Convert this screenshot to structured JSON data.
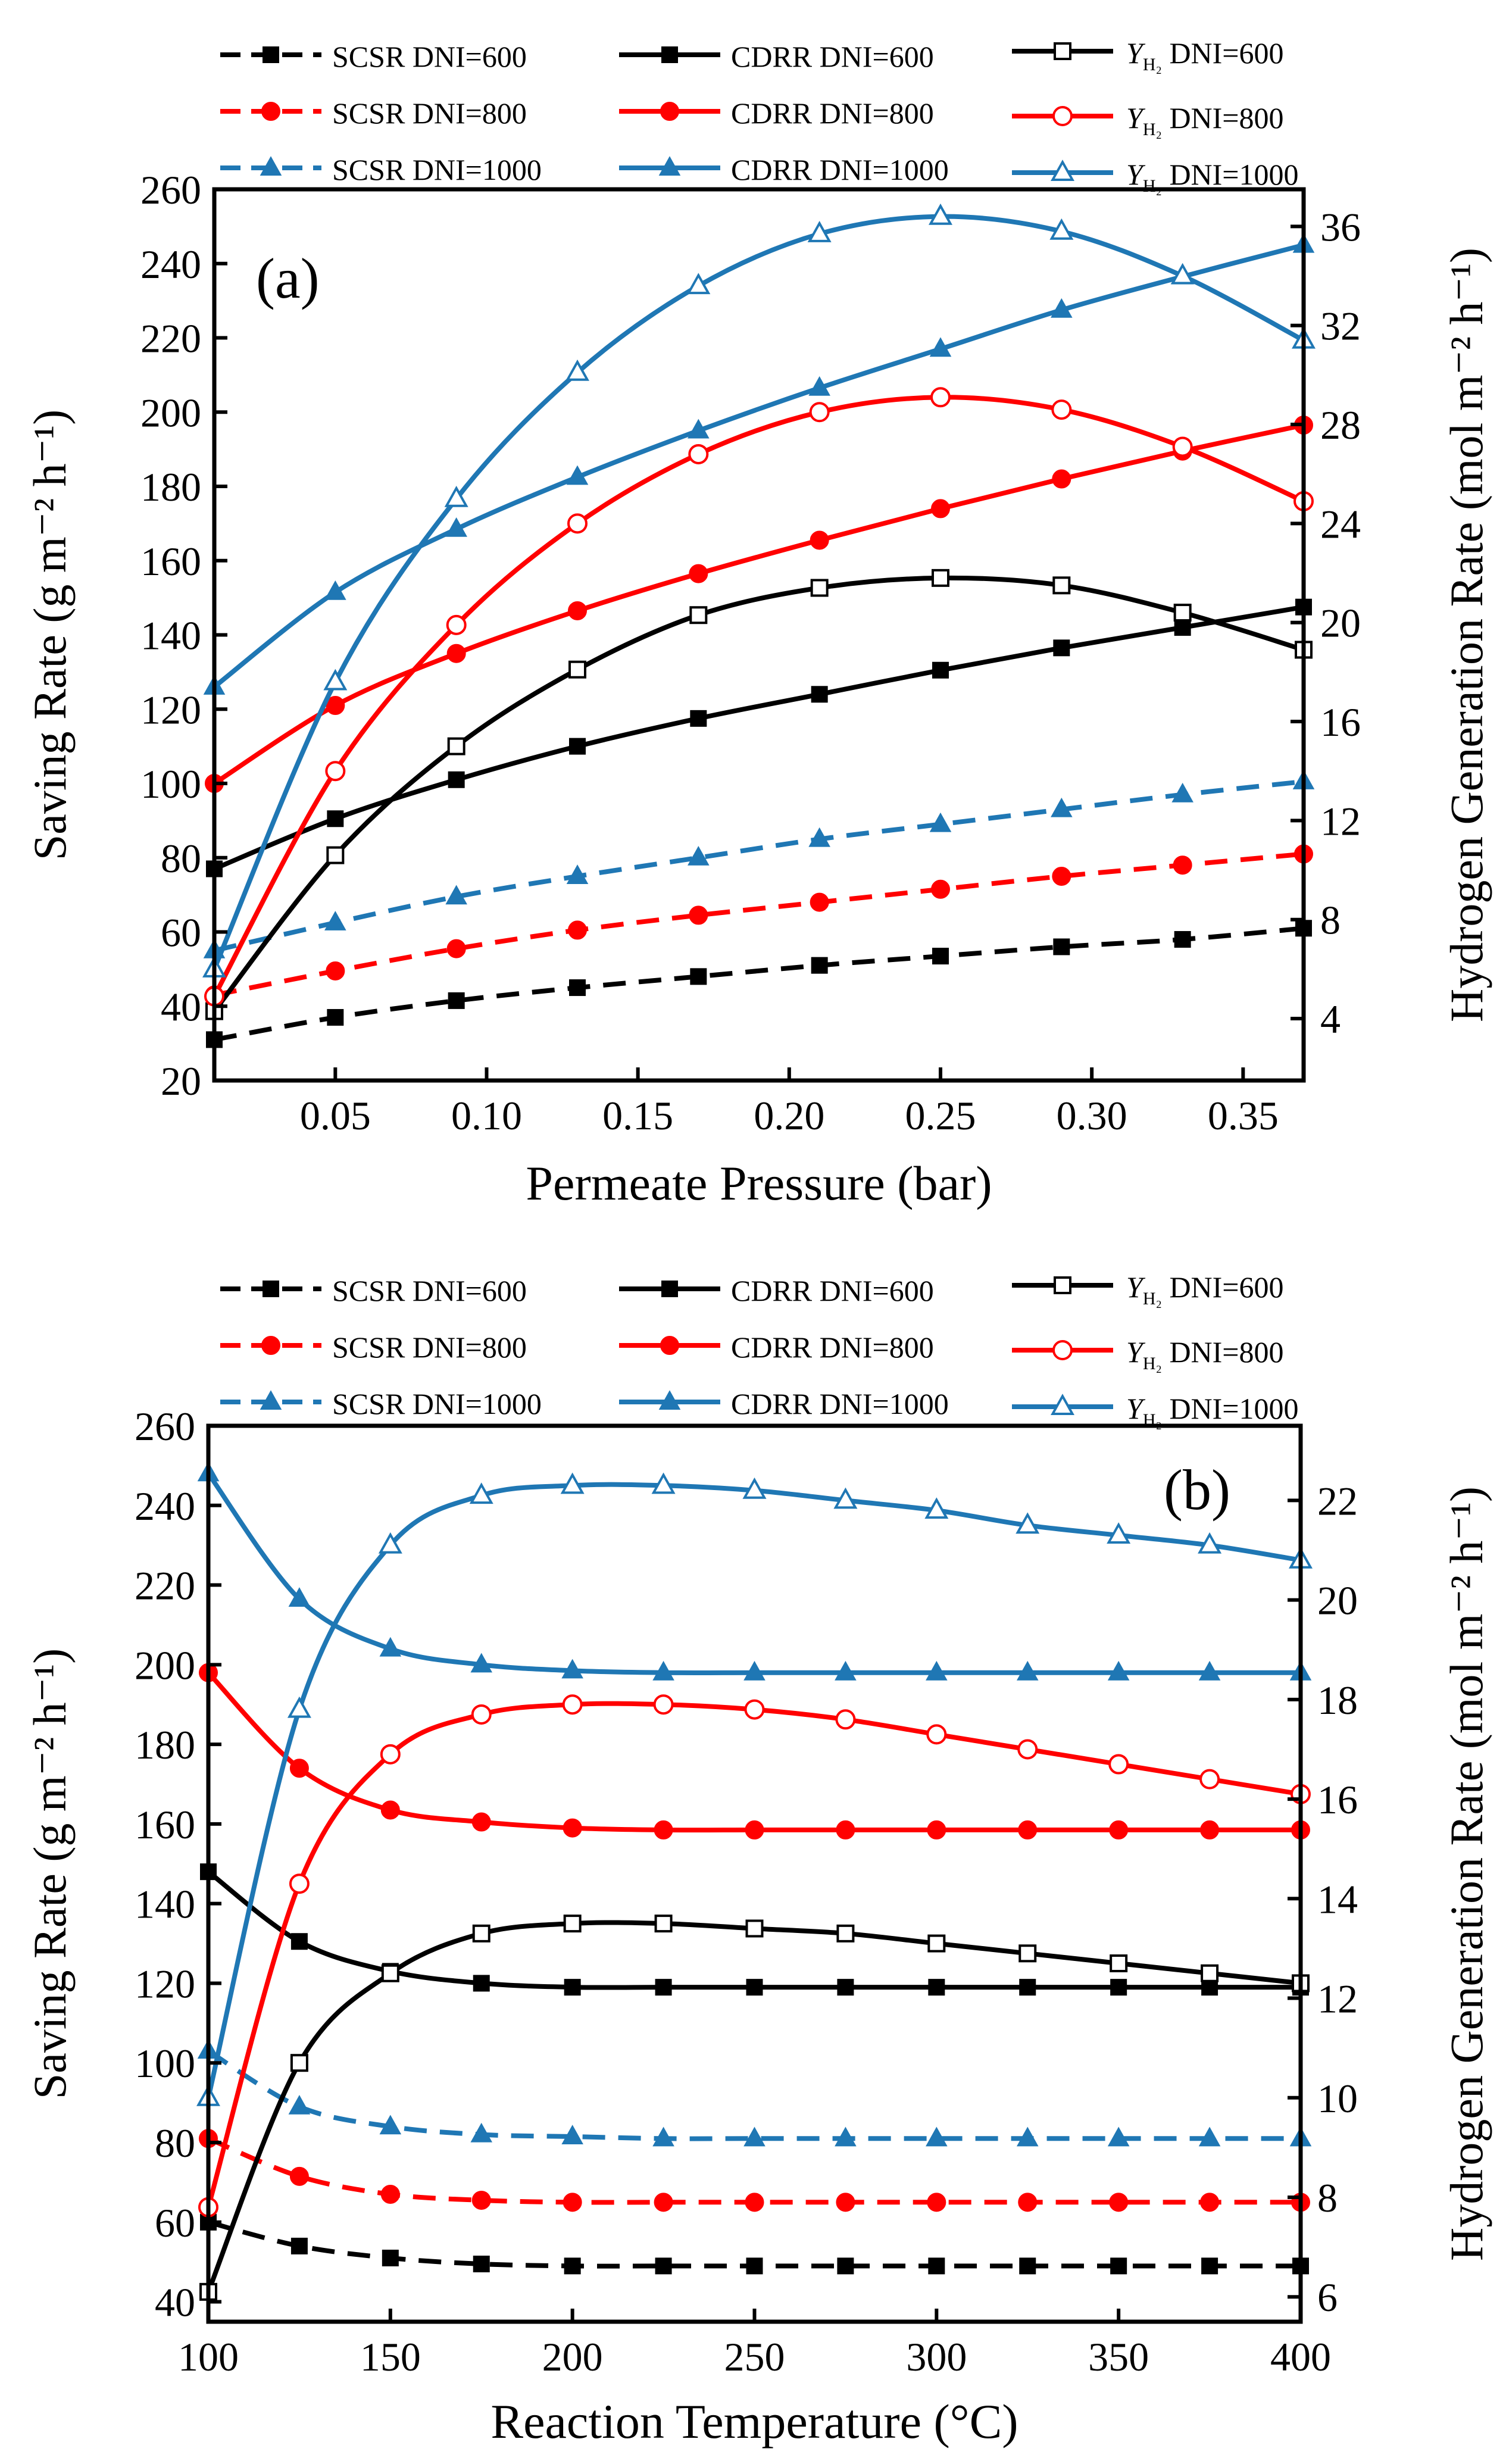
{
  "colors": {
    "black": "#000000",
    "red": "#ff0000",
    "blue": "#1f77b4"
  },
  "chart_data": [
    {
      "type": "line",
      "panel_label": "(a)",
      "xlabel": "Permeate Pressure (bar)",
      "ylabel_left": "Saving Rate (g m⁻² h⁻¹)",
      "ylabel_right": "Hydrogen Generation Rate (mol m⁻² h⁻¹)",
      "xlim": [
        0.01,
        0.37
      ],
      "ylim_left": [
        20,
        260
      ],
      "ylim_right": [
        1.5,
        37.5
      ],
      "x_ticks": [
        0.05,
        0.1,
        0.15,
        0.2,
        0.25,
        0.3,
        0.35
      ],
      "x_tick_labels": [
        "0.05",
        "0.10",
        "0.15",
        "0.20",
        "0.25",
        "0.30",
        "0.35"
      ],
      "y_left_ticks": [
        20,
        40,
        60,
        80,
        100,
        120,
        140,
        160,
        180,
        200,
        220,
        240,
        260
      ],
      "y_left_tick_labels": [
        "20",
        "40",
        "60",
        "80",
        "100",
        "120",
        "140",
        "160",
        "180",
        "200",
        "220",
        "240",
        "260"
      ],
      "y_right_ticks": [
        4,
        8,
        12,
        16,
        20,
        24,
        28,
        32,
        36
      ],
      "y_right_tick_labels": [
        "4",
        "8",
        "12",
        "16",
        "20",
        "24",
        "28",
        "32",
        "36"
      ],
      "grid": false,
      "legend_position": "top, above plot",
      "legend": [
        {
          "label": "SCSR DNI=600"
        },
        {
          "label": "CDRR DNI=600"
        },
        {
          "label_sym": "Y",
          "label_sub": "H₂",
          "label_rest": " DNI=600"
        },
        {
          "label": "SCSR DNI=800"
        },
        {
          "label": "CDRR DNI=800"
        },
        {
          "label_sym": "Y",
          "label_sub": "H₂",
          "label_rest": " DNI=800"
        },
        {
          "label": "SCSR DNI=1000"
        },
        {
          "label": "CDRR DNI=1000"
        },
        {
          "label_sym": "Y",
          "label_sub": "H₂",
          "label_rest": " DNI=1000"
        }
      ],
      "series": [
        {
          "name": "SCSR DNI=600",
          "axis": "left",
          "color": "black",
          "dash": true,
          "marker": "square-filled",
          "x": [
            0.01,
            0.05,
            0.09,
            0.13,
            0.17,
            0.21,
            0.25,
            0.29,
            0.33,
            0.37
          ],
          "y": [
            31,
            37,
            41.5,
            45,
            48,
            51,
            53.5,
            56,
            58,
            61
          ]
        },
        {
          "name": "SCSR DNI=800",
          "axis": "left",
          "color": "red",
          "dash": true,
          "marker": "circle-filled",
          "x": [
            0.01,
            0.05,
            0.09,
            0.13,
            0.17,
            0.21,
            0.25,
            0.29,
            0.33,
            0.37
          ],
          "y": [
            43,
            49.5,
            55.5,
            60.5,
            64.5,
            68,
            71.5,
            75,
            78,
            81
          ]
        },
        {
          "name": "SCSR DNI=1000",
          "axis": "left",
          "color": "blue",
          "dash": true,
          "marker": "triangle-filled",
          "x": [
            0.01,
            0.05,
            0.09,
            0.13,
            0.17,
            0.21,
            0.25,
            0.29,
            0.33,
            0.37
          ],
          "y": [
            55,
            62.5,
            69.5,
            75,
            80,
            85,
            89,
            93,
            97,
            100.5
          ]
        },
        {
          "name": "CDRR DNI=600",
          "axis": "left",
          "color": "black",
          "dash": false,
          "marker": "square-filled",
          "x": [
            0.01,
            0.05,
            0.09,
            0.13,
            0.17,
            0.21,
            0.25,
            0.29,
            0.33,
            0.37
          ],
          "y": [
            77,
            90.5,
            101,
            110,
            117.5,
            124,
            130.5,
            136.5,
            142,
            147.5
          ]
        },
        {
          "name": "CDRR DNI=800",
          "axis": "left",
          "color": "red",
          "dash": false,
          "marker": "circle-filled",
          "x": [
            0.01,
            0.05,
            0.09,
            0.13,
            0.17,
            0.21,
            0.25,
            0.29,
            0.33,
            0.37
          ],
          "y": [
            100,
            121,
            135,
            146.5,
            156.5,
            165.5,
            174,
            182,
            189.5,
            196.5
          ]
        },
        {
          "name": "CDRR DNI=1000",
          "axis": "left",
          "color": "blue",
          "dash": false,
          "marker": "triangle-filled",
          "x": [
            0.01,
            0.05,
            0.09,
            0.13,
            0.17,
            0.21,
            0.25,
            0.29,
            0.33,
            0.37
          ],
          "y": [
            126,
            151.5,
            168.5,
            182.5,
            195,
            206.5,
            217,
            227.5,
            236.5,
            245
          ]
        },
        {
          "name": "Y_H2 DNI=600",
          "axis": "right",
          "color": "black",
          "dash": false,
          "marker": "square-open",
          "x": [
            0.01,
            0.05,
            0.09,
            0.13,
            0.17,
            0.21,
            0.25,
            0.29,
            0.33,
            0.37
          ],
          "y": [
            4.3,
            10.6,
            15,
            18.1,
            20.3,
            21.4,
            21.8,
            21.5,
            20.4,
            18.9
          ]
        },
        {
          "name": "Y_H2 DNI=800",
          "axis": "right",
          "color": "red",
          "dash": false,
          "marker": "circle-open",
          "x": [
            0.01,
            0.05,
            0.09,
            0.13,
            0.17,
            0.21,
            0.25,
            0.29,
            0.33,
            0.37
          ],
          "y": [
            4.9,
            14,
            19.9,
            24,
            26.8,
            28.5,
            29.1,
            28.6,
            27.1,
            24.9
          ]
        },
        {
          "name": "Y_H2 DNI=1000",
          "axis": "right",
          "color": "blue",
          "dash": false,
          "marker": "triangle-open",
          "x": [
            0.01,
            0.05,
            0.09,
            0.13,
            0.17,
            0.21,
            0.25,
            0.29,
            0.33,
            0.37
          ],
          "y": [
            6,
            17.6,
            25,
            30.1,
            33.6,
            35.7,
            36.4,
            35.8,
            34,
            31.4
          ]
        }
      ]
    },
    {
      "type": "line",
      "panel_label": "(b)",
      "xlabel": "Reaction Temperature (°C)",
      "ylabel_left": "Saving Rate (g m⁻² h⁻¹)",
      "ylabel_right": "Hydrogen Generation Rate (mol m⁻² h⁻¹)",
      "xlim": [
        100,
        400
      ],
      "ylim_left": [
        35,
        260
      ],
      "ylim_right": [
        5.5,
        23.5
      ],
      "x_ticks": [
        100,
        150,
        200,
        250,
        300,
        350,
        400
      ],
      "x_tick_labels": [
        "100",
        "150",
        "200",
        "250",
        "300",
        "350",
        "400"
      ],
      "y_left_ticks": [
        40,
        60,
        80,
        100,
        120,
        140,
        160,
        180,
        200,
        220,
        240,
        260
      ],
      "y_left_tick_labels": [
        "40",
        "60",
        "80",
        "100",
        "120",
        "140",
        "160",
        "180",
        "200",
        "220",
        "240",
        "260"
      ],
      "y_right_ticks": [
        6,
        8,
        10,
        12,
        14,
        16,
        18,
        20,
        22
      ],
      "y_right_tick_labels": [
        "6",
        "8",
        "10",
        "12",
        "14",
        "16",
        "18",
        "20",
        "22"
      ],
      "grid": false,
      "legend_position": "top, above plot",
      "legend": [
        {
          "label": "SCSR DNI=600"
        },
        {
          "label": "CDRR DNI=600"
        },
        {
          "label_sym": "Y",
          "label_sub": "H₂",
          "label_rest": " DNI=600"
        },
        {
          "label": "SCSR DNI=800"
        },
        {
          "label": "CDRR DNI=800"
        },
        {
          "label_sym": "Y",
          "label_sub": "H₂",
          "label_rest": " DNI=800"
        },
        {
          "label": "SCSR DNI=1000"
        },
        {
          "label": "CDRR DNI=1000"
        },
        {
          "label_sym": "Y",
          "label_sub": "H₂",
          "label_rest": " DNI=1000"
        }
      ],
      "series": [
        {
          "name": "SCSR DNI=600",
          "axis": "left",
          "color": "black",
          "dash": true,
          "marker": "square-filled",
          "x": [
            100,
            125,
            150,
            175,
            200,
            225,
            250,
            275,
            300,
            325,
            350,
            375,
            400
          ],
          "y": [
            60,
            54,
            51,
            49.5,
            49,
            49,
            49,
            49,
            49,
            49,
            49,
            49,
            49
          ]
        },
        {
          "name": "SCSR DNI=800",
          "axis": "left",
          "color": "red",
          "dash": true,
          "marker": "circle-filled",
          "x": [
            100,
            125,
            150,
            175,
            200,
            225,
            250,
            275,
            300,
            325,
            350,
            375,
            400
          ],
          "y": [
            81,
            71.5,
            67,
            65.5,
            65,
            65,
            65,
            65,
            65,
            65,
            65,
            65,
            65
          ]
        },
        {
          "name": "SCSR DNI=1000",
          "axis": "left",
          "color": "blue",
          "dash": true,
          "marker": "triangle-filled",
          "x": [
            100,
            125,
            150,
            175,
            200,
            225,
            250,
            275,
            300,
            325,
            350,
            375,
            400
          ],
          "y": [
            103,
            89,
            84,
            82,
            81.5,
            81,
            81,
            81,
            81,
            81,
            81,
            81,
            81
          ]
        },
        {
          "name": "CDRR DNI=600",
          "axis": "left",
          "color": "black",
          "dash": false,
          "marker": "square-filled",
          "x": [
            100,
            125,
            150,
            175,
            200,
            225,
            250,
            275,
            300,
            325,
            350,
            375,
            400
          ],
          "y": [
            148,
            130.5,
            123,
            120,
            119,
            119,
            119,
            119,
            119,
            119,
            119,
            119,
            119
          ]
        },
        {
          "name": "CDRR DNI=800",
          "axis": "left",
          "color": "red",
          "dash": false,
          "marker": "circle-filled",
          "x": [
            100,
            125,
            150,
            175,
            200,
            225,
            250,
            275,
            300,
            325,
            350,
            375,
            400
          ],
          "y": [
            198,
            174,
            163.5,
            160.5,
            159,
            158.5,
            158.5,
            158.5,
            158.5,
            158.5,
            158.5,
            158.5,
            158.5
          ]
        },
        {
          "name": "CDRR DNI=1000",
          "axis": "left",
          "color": "blue",
          "dash": false,
          "marker": "triangle-filled",
          "x": [
            100,
            125,
            150,
            175,
            200,
            225,
            250,
            275,
            300,
            325,
            350,
            375,
            400
          ],
          "y": [
            248,
            216.5,
            204,
            200,
            198.5,
            198,
            198,
            198,
            198,
            198,
            198,
            198,
            198
          ]
        },
        {
          "name": "Y_H2 DNI=600",
          "axis": "right",
          "color": "black",
          "dash": false,
          "marker": "square-open",
          "x": [
            100,
            125,
            150,
            175,
            200,
            225,
            250,
            275,
            300,
            325,
            350,
            375,
            400
          ],
          "y": [
            6.1,
            10.7,
            12.5,
            13.3,
            13.5,
            13.5,
            13.4,
            13.3,
            13.1,
            12.9,
            12.7,
            12.5,
            12.3
          ]
        },
        {
          "name": "Y_H2 DNI=800",
          "axis": "right",
          "color": "red",
          "dash": false,
          "marker": "circle-open",
          "x": [
            100,
            125,
            150,
            175,
            200,
            225,
            250,
            275,
            300,
            325,
            350,
            375,
            400
          ],
          "y": [
            7.8,
            14.3,
            16.9,
            17.7,
            17.9,
            17.9,
            17.8,
            17.6,
            17.3,
            17,
            16.7,
            16.4,
            16.1
          ]
        },
        {
          "name": "Y_H2 DNI=1000",
          "axis": "right",
          "color": "blue",
          "dash": false,
          "marker": "triangle-open",
          "x": [
            100,
            125,
            150,
            175,
            200,
            225,
            250,
            275,
            300,
            325,
            350,
            375,
            400
          ],
          "y": [
            10,
            17.8,
            21.1,
            22.1,
            22.3,
            22.3,
            22.2,
            22,
            21.8,
            21.5,
            21.3,
            21.1,
            20.8
          ]
        }
      ]
    }
  ]
}
